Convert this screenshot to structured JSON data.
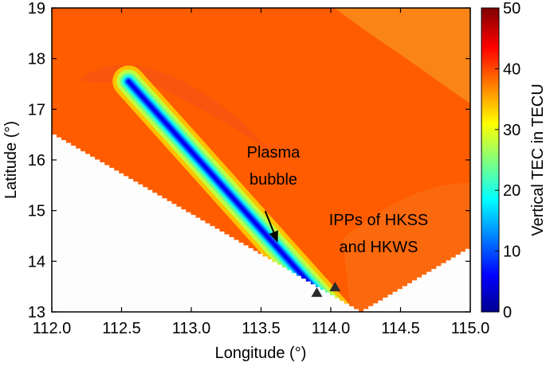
{
  "chart_data": {
    "type": "heatmap",
    "title": "",
    "xlabel": "Longitude (°)",
    "ylabel": "Latitude (°)",
    "xlim": [
      112.0,
      115.0
    ],
    "ylim": [
      13,
      19
    ],
    "x_ticks": [
      "112.0",
      "112.5",
      "113.0",
      "113.5",
      "114.0",
      "114.5",
      "115.0"
    ],
    "x_tick_values": [
      112.0,
      112.5,
      113.0,
      113.5,
      114.0,
      114.5,
      115.0
    ],
    "y_ticks": [
      "13",
      "14",
      "15",
      "16",
      "17",
      "18",
      "19"
    ],
    "y_tick_values": [
      13,
      14,
      15,
      16,
      17,
      18,
      19
    ],
    "colorbar": {
      "label": "Vertical TEC in TECU",
      "range": [
        0,
        50
      ],
      "ticks": [
        "0",
        "10",
        "20",
        "30",
        "40",
        "50"
      ],
      "tick_values": [
        0,
        10,
        20,
        30,
        40,
        50
      ],
      "colormap": "jet"
    },
    "background_tec": 39,
    "coverage_lower_boundary": [
      {
        "lon": 112.0,
        "lat": 16.5
      },
      {
        "lon": 114.2,
        "lat": 13.0
      },
      {
        "lon": 115.0,
        "lat": 14.3
      }
    ],
    "bubble": {
      "start": {
        "lon": 112.55,
        "lat": 17.55
      },
      "end": {
        "lon": 114.03,
        "lat": 13.0
      },
      "min_tec": 5
    },
    "ipp_markers": [
      {
        "lon": 113.9,
        "lat": 13.39
      },
      {
        "lon": 114.03,
        "lat": 13.5
      }
    ],
    "annotations": {
      "bubble_label": [
        "Plasma",
        "bubble"
      ],
      "ipp_label": [
        "IPPs of HKSS",
        "and HKWS"
      ],
      "arrow_tail": {
        "lon": 113.53,
        "lat": 14.99
      },
      "arrow_head": {
        "lon": 113.62,
        "lat": 14.37
      }
    }
  }
}
